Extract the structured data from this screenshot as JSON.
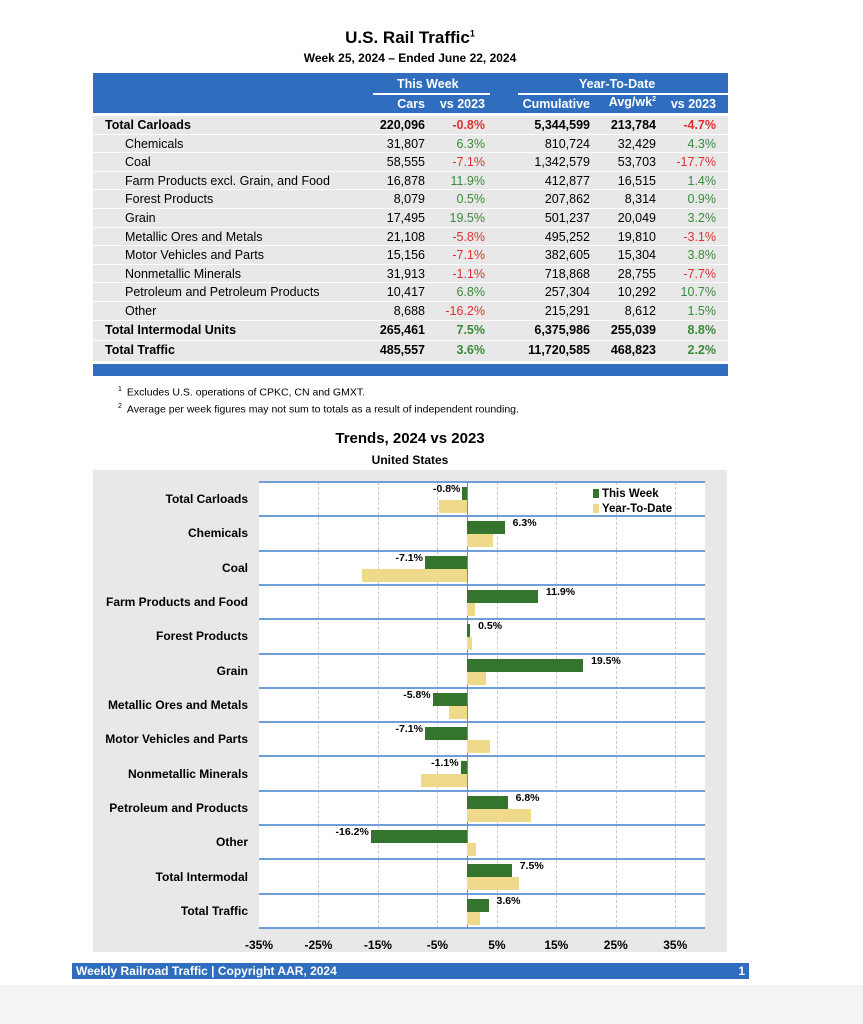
{
  "title": "U.S. Rail Traffic",
  "title_footnote": "1",
  "subtitle": "Week 25, 2024 – Ended June 22, 2024",
  "table": {
    "group_headers": [
      "This Week",
      "Year-To-Date"
    ],
    "columns": [
      "Cars",
      "vs 2023",
      "Cumulative",
      "Avg/wk",
      "vs 2023"
    ],
    "avg_footnote": "2",
    "rows": [
      {
        "label": "Total Carloads",
        "bold": true,
        "cars": "220,096",
        "vs_week": "-0.8%",
        "cumulative": "5,344,599",
        "avg": "213,784",
        "vs_ytd": "-4.7%"
      },
      {
        "label": "Chemicals",
        "cars": "31,807",
        "vs_week": "6.3%",
        "cumulative": "810,724",
        "avg": "32,429",
        "vs_ytd": "4.3%"
      },
      {
        "label": "Coal",
        "cars": "58,555",
        "vs_week": "-7.1%",
        "cumulative": "1,342,579",
        "avg": "53,703",
        "vs_ytd": "-17.7%"
      },
      {
        "label": "Farm Products excl. Grain, and Food",
        "cars": "16,878",
        "vs_week": "11.9%",
        "cumulative": "412,877",
        "avg": "16,515",
        "vs_ytd": "1.4%"
      },
      {
        "label": "Forest Products",
        "cars": "8,079",
        "vs_week": "0.5%",
        "cumulative": "207,862",
        "avg": "8,314",
        "vs_ytd": "0.9%"
      },
      {
        "label": "Grain",
        "cars": "17,495",
        "vs_week": "19.5%",
        "cumulative": "501,237",
        "avg": "20,049",
        "vs_ytd": "3.2%"
      },
      {
        "label": "Metallic Ores and Metals",
        "cars": "21,108",
        "vs_week": "-5.8%",
        "cumulative": "495,252",
        "avg": "19,810",
        "vs_ytd": "-3.1%"
      },
      {
        "label": "Motor Vehicles and Parts",
        "cars": "15,156",
        "vs_week": "-7.1%",
        "cumulative": "382,605",
        "avg": "15,304",
        "vs_ytd": "3.8%"
      },
      {
        "label": "Nonmetallic Minerals",
        "cars": "31,913",
        "vs_week": "-1.1%",
        "cumulative": "718,868",
        "avg": "28,755",
        "vs_ytd": "-7.7%"
      },
      {
        "label": "Petroleum and Petroleum Products",
        "cars": "10,417",
        "vs_week": "6.8%",
        "cumulative": "257,304",
        "avg": "10,292",
        "vs_ytd": "10.7%"
      },
      {
        "label": "Other",
        "cars": "8,688",
        "vs_week": "-16.2%",
        "cumulative": "215,291",
        "avg": "8,612",
        "vs_ytd": "1.5%"
      },
      {
        "label": "Total Intermodal Units",
        "bold": true,
        "cars": "265,461",
        "vs_week": "7.5%",
        "cumulative": "6,375,986",
        "avg": "255,039",
        "vs_ytd": "8.8%"
      },
      {
        "label": "Total Traffic",
        "bold": true,
        "cars": "485,557",
        "vs_week": "3.6%",
        "cumulative": "11,720,585",
        "avg": "468,823",
        "vs_ytd": "2.2%"
      }
    ]
  },
  "footnotes": [
    {
      "mark": "1",
      "text": "Excludes U.S. operations of CPKC, CN and GMXT."
    },
    {
      "mark": "2",
      "text": "Average per week figures may not sum to totals as a result of independent rounding."
    }
  ],
  "chart_data": {
    "type": "bar",
    "orientation": "horizontal",
    "title": "Trends, 2024 vs 2023",
    "subtitle": "United States",
    "categories": [
      "Total Carloads",
      "Chemicals",
      "Coal",
      "Farm Products and Food",
      "Forest Products",
      "Grain",
      "Metallic Ores and Metals",
      "Motor Vehicles and Parts",
      "Nonmetallic Minerals",
      "Petroleum and Products",
      "Other",
      "Total Intermodal",
      "Total Traffic"
    ],
    "series": [
      {
        "name": "This Week",
        "color": "#34742c",
        "values": [
          -0.8,
          6.3,
          -7.1,
          11.9,
          0.5,
          19.5,
          -5.8,
          -7.1,
          -1.1,
          6.8,
          -16.2,
          7.5,
          3.6
        ],
        "labels": [
          "-0.8%",
          "6.3%",
          "-7.1%",
          "11.9%",
          "0.5%",
          "19.5%",
          "-5.8%",
          "-7.1%",
          "-1.1%",
          "6.8%",
          "-16.2%",
          "7.5%",
          "3.6%"
        ]
      },
      {
        "name": "Year-To-Date",
        "color": "#efd98a",
        "values": [
          -4.7,
          4.3,
          -17.7,
          1.4,
          0.9,
          3.2,
          -3.1,
          3.8,
          -7.7,
          10.7,
          1.5,
          8.8,
          2.2
        ]
      }
    ],
    "xlim": [
      -35,
      40
    ],
    "ticks": [
      "-35%",
      "-25%",
      "-15%",
      "-5%",
      "5%",
      "15%",
      "25%",
      "35%"
    ],
    "tick_values": [
      -35,
      -25,
      -15,
      -5,
      5,
      15,
      25,
      35
    ],
    "grid": true,
    "legend": "top-right"
  },
  "footer": {
    "text": "Weekly Railroad Traffic | Copyright AAR, 2024",
    "page": "1"
  },
  "colors": {
    "header_blue": "#2f6dbf",
    "negative": "#e03030",
    "positive": "#3a8a3a"
  }
}
